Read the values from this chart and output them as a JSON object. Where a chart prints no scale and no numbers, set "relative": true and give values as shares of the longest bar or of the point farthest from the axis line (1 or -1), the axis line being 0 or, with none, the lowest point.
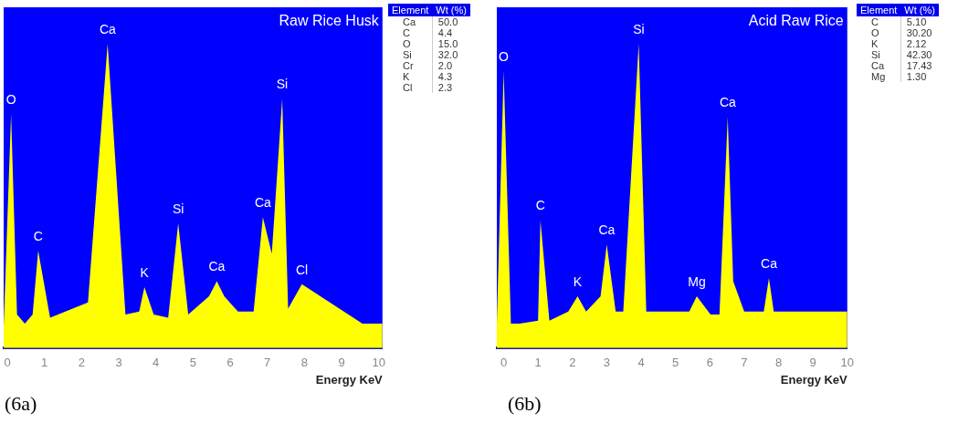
{
  "chart_data": [
    {
      "type": "area",
      "title": "Raw Rice Husk",
      "xlabel": "Energy KeV",
      "relative": true,
      "color": "#ffff00",
      "xlim": [
        -0.1,
        10.1
      ],
      "xticks": [
        0,
        1,
        2,
        3,
        4,
        5,
        6,
        7,
        8,
        9,
        10
      ],
      "x": [
        -0.1,
        -0.1,
        0.1,
        0.26,
        0.47,
        0.68,
        0.83,
        1.15,
        2.17,
        2.7,
        3.18,
        3.55,
        3.69,
        3.94,
        4.33,
        4.6,
        4.87,
        5.43,
        5.64,
        5.84,
        6.21,
        6.63,
        6.88,
        7.12,
        7.4,
        7.56,
        7.93,
        9.56,
        10.1
      ],
      "values": [
        0.03,
        0.07,
        0.77,
        0.11,
        0.08,
        0.11,
        0.32,
        0.1,
        0.15,
        1.0,
        0.11,
        0.12,
        0.2,
        0.11,
        0.1,
        0.41,
        0.11,
        0.17,
        0.22,
        0.17,
        0.12,
        0.12,
        0.43,
        0.31,
        0.82,
        0.13,
        0.21,
        0.08,
        0.08
      ],
      "annotations": [
        {
          "text": "O",
          "x": 0.1,
          "y": 0.77
        },
        {
          "text": "C",
          "x": 0.83,
          "y": 0.32
        },
        {
          "text": "Ca",
          "x": 2.7,
          "y": 1.0
        },
        {
          "text": "K",
          "x": 3.69,
          "y": 0.2
        },
        {
          "text": "Si",
          "x": 4.6,
          "y": 0.41
        },
        {
          "text": "Ca",
          "x": 5.64,
          "y": 0.22
        },
        {
          "text": "Ca",
          "x": 6.88,
          "y": 0.43
        },
        {
          "text": "Si",
          "x": 7.4,
          "y": 0.82
        },
        {
          "text": "Cl",
          "x": 7.93,
          "y": 0.21
        },
        "(6a)"
      ]
    },
    {
      "type": "other",
      "xlabel": "Element",
      "ylabel": "Wt (%)",
      "categories": [
        "Ca",
        "C",
        "O",
        "Si",
        "Cr",
        "K",
        "Cl"
      ],
      "value_labels": [
        "50.0",
        "4.4",
        "15.0",
        "32.0",
        "2.0",
        "4.3",
        "2.3"
      ]
    },
    {
      "type": "area",
      "title": "Acid Raw Rice",
      "xlabel": "Energy KeV",
      "relative": true,
      "color": "#ffff00",
      "xlim": [
        -0.2,
        10
      ],
      "xticks": [
        0,
        1,
        2,
        3,
        4,
        5,
        6,
        7,
        8,
        9,
        10
      ],
      "x": [
        -0.2,
        0.0,
        0.21,
        0.46,
        1.0,
        1.07,
        1.33,
        1.88,
        2.15,
        2.4,
        2.82,
        3.0,
        3.26,
        3.48,
        3.93,
        4.15,
        5.4,
        5.62,
        6.02,
        6.28,
        6.52,
        6.68,
        7.0,
        7.57,
        7.72,
        7.86,
        10.0
      ],
      "values": [
        0.08,
        0.91,
        0.08,
        0.08,
        0.09,
        0.42,
        0.09,
        0.12,
        0.17,
        0.12,
        0.17,
        0.34,
        0.12,
        0.12,
        1.0,
        0.12,
        0.12,
        0.17,
        0.11,
        0.11,
        0.76,
        0.22,
        0.12,
        0.12,
        0.23,
        0.12,
        0.12
      ],
      "annotations": [
        {
          "text": "O",
          "x": 0.0,
          "y": 0.91
        },
        {
          "text": "C",
          "x": 1.07,
          "y": 0.42
        },
        {
          "text": "K",
          "x": 2.15,
          "y": 0.17
        },
        {
          "text": "Ca",
          "x": 3.0,
          "y": 0.34
        },
        {
          "text": "Si",
          "x": 3.93,
          "y": 1.0
        },
        {
          "text": "Mg",
          "x": 5.62,
          "y": 0.17
        },
        {
          "text": "Ca",
          "x": 6.52,
          "y": 0.76
        },
        {
          "text": "Ca",
          "x": 7.72,
          "y": 0.23
        },
        "(6b)"
      ]
    },
    {
      "type": "other",
      "xlabel": "Element",
      "ylabel": "Wt (%)",
      "categories": [
        "C",
        "O",
        "K",
        "Si",
        "Ca",
        "Mg"
      ],
      "value_labels": [
        "5.10",
        "30.20",
        "2.12",
        "42.30",
        "17.43",
        "1.30"
      ]
    }
  ]
}
